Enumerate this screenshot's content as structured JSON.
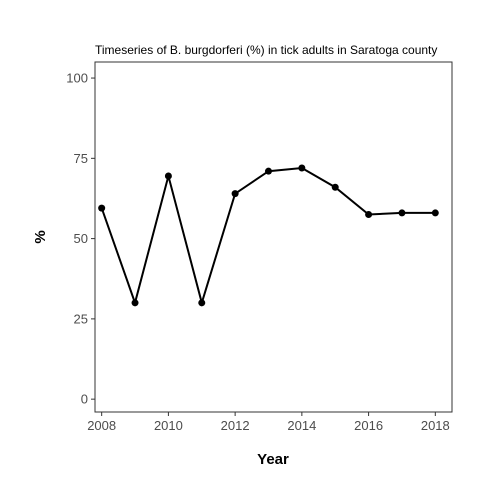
{
  "chart_data": {
    "type": "line",
    "title": "Timeseries of B. burgdorferi (%) in tick adults in Saratoga county",
    "xlabel": "Year",
    "ylabel": "%",
    "x": [
      2008,
      2009,
      2010,
      2011,
      2012,
      2013,
      2014,
      2015,
      2016,
      2017,
      2018
    ],
    "series": [
      {
        "values": [
          59.5,
          30,
          69.5,
          30,
          64,
          71,
          72,
          66,
          57.5,
          58,
          58
        ]
      }
    ],
    "xlim": [
      2007.8,
      2018.5
    ],
    "ylim": [
      -4,
      105
    ],
    "x_ticks": [
      "2008",
      "2010",
      "2012",
      "2014",
      "2016",
      "2018"
    ],
    "y_ticks": [
      "0",
      "25",
      "50",
      "75",
      "100"
    ],
    "grid": false,
    "legend": "none",
    "line_color": "#000000",
    "panel_border_color": "#333333",
    "tick_label_color": "#4d4d4d"
  }
}
